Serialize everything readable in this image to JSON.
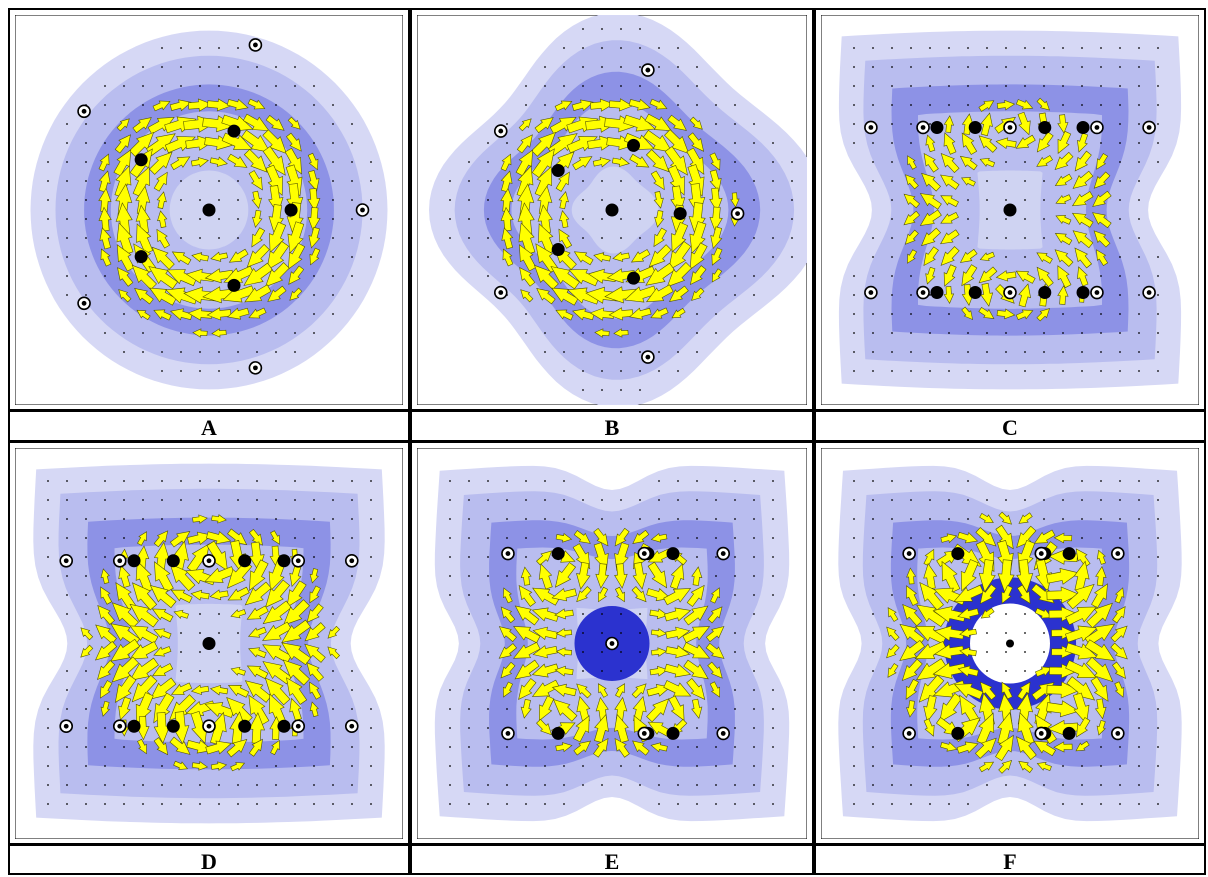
{
  "figure": {
    "panels": [
      {
        "label": "A",
        "shape": "circle"
      },
      {
        "label": "B",
        "shape": "blob"
      },
      {
        "label": "C",
        "shape": "hourglass"
      },
      {
        "label": "D",
        "shape": "hourglass"
      },
      {
        "label": "E",
        "shape": "cross"
      },
      {
        "label": "F",
        "shape": "cross"
      }
    ]
  },
  "colors": {
    "contour_light": "#d6d8f5",
    "contour_mid": "#b9bdef",
    "contour_dark": "#8d92e6",
    "contour_core": "#2b32cf",
    "arrow_fill": "#ffff00",
    "arrow_stroke": "#555500",
    "atom": "#000000"
  }
}
